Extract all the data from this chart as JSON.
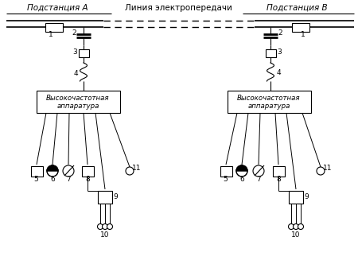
{
  "title_center": "Линия электропередачи",
  "title_left": "Подстанция А",
  "title_right": "Подстанция В",
  "bg_color": "#ffffff",
  "line_color": "#000000",
  "fig_width": 4.5,
  "fig_height": 3.32,
  "dpi": 100
}
